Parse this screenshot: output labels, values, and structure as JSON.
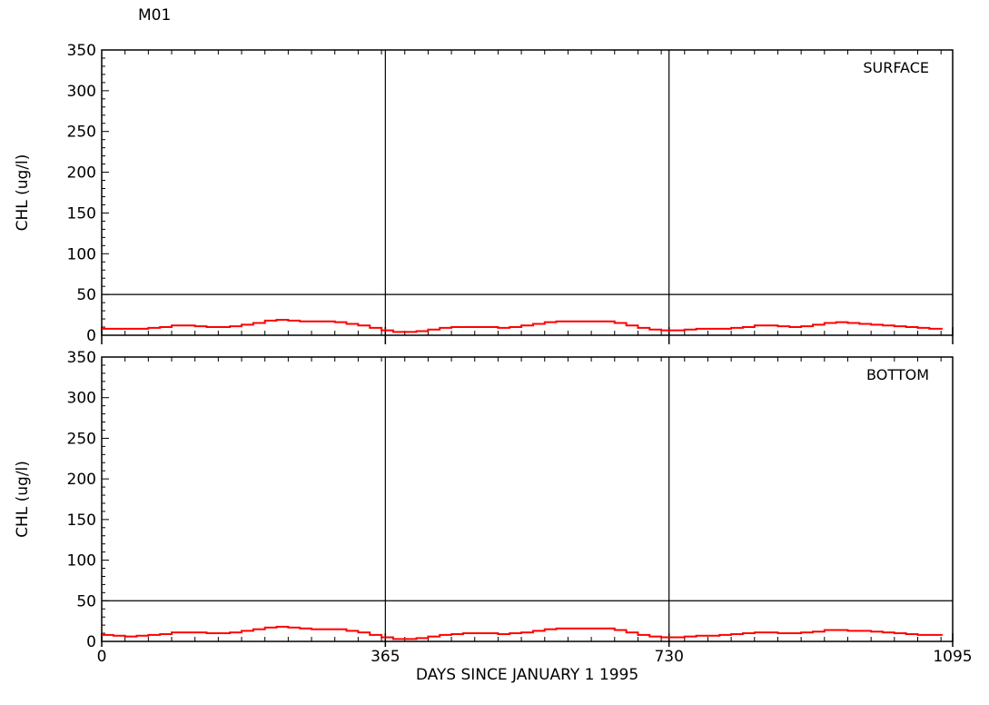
{
  "station": "M01",
  "chart_data": [
    {
      "type": "line",
      "panel_label": "SURFACE",
      "ylabel": "CHL (ug/l)",
      "xlabel": "",
      "xlim": [
        0,
        1095
      ],
      "ylim": [
        0,
        350
      ],
      "y_ticks": [
        0,
        50,
        100,
        150,
        200,
        250,
        300,
        350
      ],
      "x_ticks": [],
      "reference_lines": {
        "x": [
          365,
          730
        ],
        "y": [
          50
        ]
      },
      "series": [
        {
          "color": "#ff0000",
          "x": [
            0,
            15,
            30,
            45,
            60,
            75,
            90,
            105,
            120,
            135,
            150,
            165,
            180,
            195,
            210,
            225,
            240,
            255,
            270,
            285,
            300,
            315,
            330,
            345,
            360,
            375,
            390,
            405,
            420,
            435,
            450,
            465,
            480,
            495,
            510,
            525,
            540,
            555,
            570,
            585,
            600,
            615,
            630,
            645,
            660,
            675,
            690,
            705,
            720,
            735,
            750,
            765,
            780,
            795,
            810,
            825,
            840,
            855,
            870,
            885,
            900,
            915,
            930,
            945,
            960,
            975,
            990,
            1005,
            1020,
            1035,
            1050,
            1065,
            1080
          ],
          "values": [
            8,
            8,
            8,
            8,
            9,
            10,
            12,
            12,
            11,
            10,
            10,
            11,
            13,
            15,
            18,
            19,
            18,
            17,
            17,
            17,
            16,
            14,
            12,
            9,
            6,
            4,
            4,
            5,
            7,
            9,
            10,
            10,
            10,
            10,
            9,
            10,
            12,
            14,
            16,
            17,
            17,
            17,
            17,
            17,
            15,
            12,
            9,
            7,
            6,
            6,
            7,
            8,
            8,
            8,
            9,
            10,
            12,
            12,
            11,
            10,
            11,
            13,
            15,
            16,
            15,
            14,
            13,
            12,
            11,
            10,
            9,
            8,
            8
          ]
        }
      ]
    },
    {
      "type": "line",
      "panel_label": "BOTTOM",
      "ylabel": "CHL (ug/l)",
      "xlabel": "DAYS SINCE JANUARY 1 1995",
      "xlim": [
        0,
        1095
      ],
      "ylim": [
        0,
        350
      ],
      "y_ticks": [
        0,
        50,
        100,
        150,
        200,
        250,
        300,
        350
      ],
      "x_ticks": [
        0,
        365,
        730,
        1095
      ],
      "reference_lines": {
        "x": [
          365,
          730
        ],
        "y": [
          50
        ]
      },
      "series": [
        {
          "color": "#ff0000",
          "x": [
            0,
            15,
            30,
            45,
            60,
            75,
            90,
            105,
            120,
            135,
            150,
            165,
            180,
            195,
            210,
            225,
            240,
            255,
            270,
            285,
            300,
            315,
            330,
            345,
            360,
            375,
            390,
            405,
            420,
            435,
            450,
            465,
            480,
            495,
            510,
            525,
            540,
            555,
            570,
            585,
            600,
            615,
            630,
            645,
            660,
            675,
            690,
            705,
            720,
            735,
            750,
            765,
            780,
            795,
            810,
            825,
            840,
            855,
            870,
            885,
            900,
            915,
            930,
            945,
            960,
            975,
            990,
            1005,
            1020,
            1035,
            1050,
            1065,
            1080
          ],
          "values": [
            8,
            7,
            6,
            7,
            8,
            9,
            11,
            11,
            11,
            10,
            10,
            11,
            13,
            15,
            17,
            18,
            17,
            16,
            15,
            15,
            15,
            13,
            11,
            8,
            5,
            3,
            3,
            4,
            6,
            8,
            9,
            10,
            10,
            10,
            9,
            10,
            11,
            13,
            15,
            16,
            16,
            16,
            16,
            16,
            14,
            11,
            8,
            6,
            5,
            5,
            6,
            7,
            7,
            8,
            9,
            10,
            11,
            11,
            10,
            10,
            11,
            12,
            14,
            14,
            13,
            13,
            12,
            11,
            10,
            9,
            8,
            8,
            8
          ]
        }
      ]
    }
  ]
}
